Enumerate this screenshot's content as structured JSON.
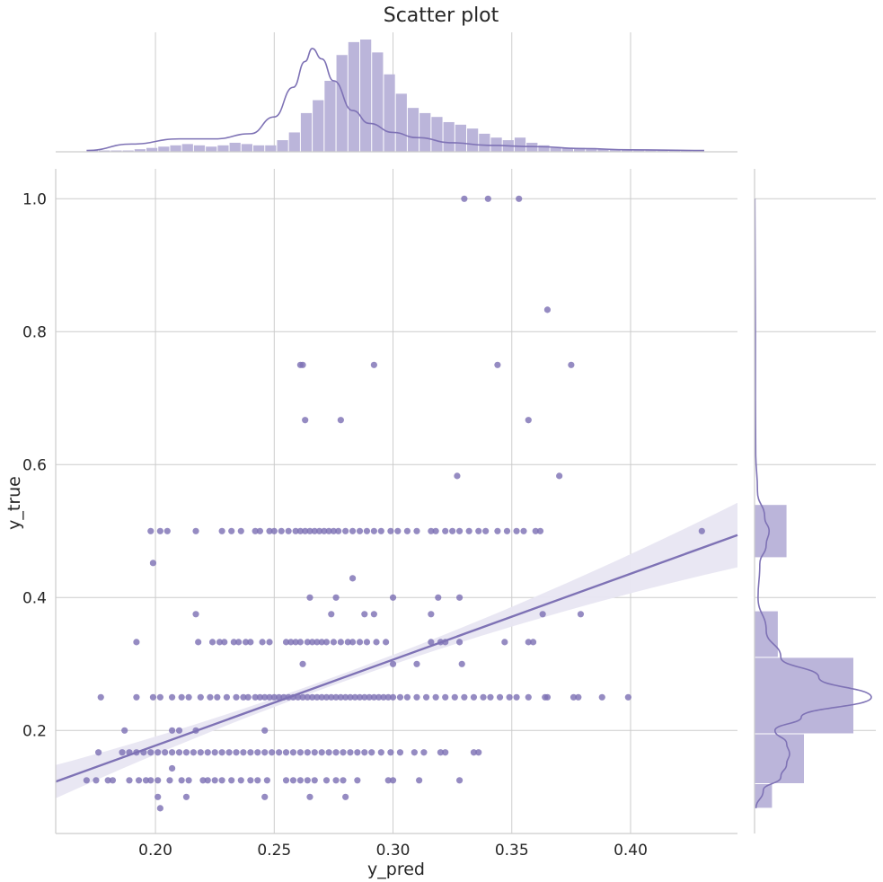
{
  "chart_data": {
    "type": "scatter",
    "title": "Scatter plot",
    "xlabel": "y_pred",
    "ylabel": "y_true",
    "xlim": [
      0.158,
      0.445
    ],
    "ylim": [
      0.045,
      1.045
    ],
    "x_ticks": [
      0.2,
      0.25,
      0.3,
      0.35,
      0.4
    ],
    "x_tick_labels": [
      "0.20",
      "0.25",
      "0.30",
      "0.35",
      "0.40"
    ],
    "y_ticks": [
      0.2,
      0.4,
      0.6,
      0.8,
      1.0
    ],
    "y_tick_labels": [
      "0.2",
      "0.4",
      "0.6",
      "0.8",
      "1.0"
    ],
    "grid": true,
    "colors": {
      "points": "#7e72b5",
      "line": "#7e72b5",
      "band": "#e8e6f2",
      "hist_bar": "#bbb5da",
      "kde": "#7e72b5"
    },
    "regression": {
      "x": [
        0.158,
        0.445
      ],
      "y": [
        0.123,
        0.494
      ],
      "ci_upper_at_ends": [
        0.148,
        0.543
      ],
      "ci_lower_at_ends": [
        0.098,
        0.446
      ],
      "ci_center_x": 0.27
    },
    "points": [
      [
        0.33,
        1.0
      ],
      [
        0.34,
        1.0
      ],
      [
        0.353,
        1.0
      ],
      [
        0.365,
        0.833
      ],
      [
        0.261,
        0.75
      ],
      [
        0.262,
        0.75
      ],
      [
        0.292,
        0.75
      ],
      [
        0.344,
        0.75
      ],
      [
        0.375,
        0.75
      ],
      [
        0.263,
        0.667
      ],
      [
        0.278,
        0.667
      ],
      [
        0.357,
        0.667
      ],
      [
        0.327,
        0.583
      ],
      [
        0.37,
        0.583
      ],
      [
        0.43,
        0.5
      ],
      [
        0.198,
        0.5
      ],
      [
        0.202,
        0.5
      ],
      [
        0.205,
        0.5
      ],
      [
        0.217,
        0.5
      ],
      [
        0.228,
        0.5
      ],
      [
        0.232,
        0.5
      ],
      [
        0.236,
        0.5
      ],
      [
        0.242,
        0.5
      ],
      [
        0.244,
        0.5
      ],
      [
        0.248,
        0.5
      ],
      [
        0.25,
        0.5
      ],
      [
        0.253,
        0.5
      ],
      [
        0.256,
        0.5
      ],
      [
        0.259,
        0.5
      ],
      [
        0.261,
        0.5
      ],
      [
        0.263,
        0.5
      ],
      [
        0.265,
        0.5
      ],
      [
        0.267,
        0.5
      ],
      [
        0.269,
        0.5
      ],
      [
        0.271,
        0.5
      ],
      [
        0.273,
        0.5
      ],
      [
        0.275,
        0.5
      ],
      [
        0.277,
        0.5
      ],
      [
        0.28,
        0.5
      ],
      [
        0.283,
        0.5
      ],
      [
        0.286,
        0.5
      ],
      [
        0.289,
        0.5
      ],
      [
        0.292,
        0.5
      ],
      [
        0.295,
        0.5
      ],
      [
        0.299,
        0.5
      ],
      [
        0.302,
        0.5
      ],
      [
        0.306,
        0.5
      ],
      [
        0.31,
        0.5
      ],
      [
        0.316,
        0.5
      ],
      [
        0.318,
        0.5
      ],
      [
        0.322,
        0.5
      ],
      [
        0.325,
        0.5
      ],
      [
        0.328,
        0.5
      ],
      [
        0.332,
        0.5
      ],
      [
        0.336,
        0.5
      ],
      [
        0.339,
        0.5
      ],
      [
        0.344,
        0.5
      ],
      [
        0.348,
        0.5
      ],
      [
        0.352,
        0.5
      ],
      [
        0.355,
        0.5
      ],
      [
        0.36,
        0.5
      ],
      [
        0.362,
        0.5
      ],
      [
        0.199,
        0.452
      ],
      [
        0.283,
        0.429
      ],
      [
        0.265,
        0.4
      ],
      [
        0.276,
        0.4
      ],
      [
        0.3,
        0.4
      ],
      [
        0.319,
        0.4
      ],
      [
        0.328,
        0.4
      ],
      [
        0.217,
        0.375
      ],
      [
        0.274,
        0.375
      ],
      [
        0.288,
        0.375
      ],
      [
        0.292,
        0.375
      ],
      [
        0.316,
        0.375
      ],
      [
        0.363,
        0.375
      ],
      [
        0.379,
        0.375
      ],
      [
        0.192,
        0.333
      ],
      [
        0.218,
        0.333
      ],
      [
        0.224,
        0.333
      ],
      [
        0.227,
        0.333
      ],
      [
        0.229,
        0.333
      ],
      [
        0.233,
        0.333
      ],
      [
        0.235,
        0.333
      ],
      [
        0.238,
        0.333
      ],
      [
        0.24,
        0.333
      ],
      [
        0.245,
        0.333
      ],
      [
        0.248,
        0.333
      ],
      [
        0.255,
        0.333
      ],
      [
        0.257,
        0.333
      ],
      [
        0.259,
        0.333
      ],
      [
        0.261,
        0.333
      ],
      [
        0.264,
        0.333
      ],
      [
        0.266,
        0.333
      ],
      [
        0.268,
        0.333
      ],
      [
        0.27,
        0.333
      ],
      [
        0.272,
        0.333
      ],
      [
        0.275,
        0.333
      ],
      [
        0.278,
        0.333
      ],
      [
        0.281,
        0.333
      ],
      [
        0.283,
        0.333
      ],
      [
        0.286,
        0.333
      ],
      [
        0.289,
        0.333
      ],
      [
        0.293,
        0.333
      ],
      [
        0.297,
        0.333
      ],
      [
        0.316,
        0.333
      ],
      [
        0.32,
        0.333
      ],
      [
        0.322,
        0.333
      ],
      [
        0.328,
        0.333
      ],
      [
        0.347,
        0.333
      ],
      [
        0.357,
        0.333
      ],
      [
        0.359,
        0.333
      ],
      [
        0.262,
        0.3
      ],
      [
        0.3,
        0.3
      ],
      [
        0.31,
        0.3
      ],
      [
        0.329,
        0.3
      ],
      [
        0.177,
        0.25
      ],
      [
        0.192,
        0.25
      ],
      [
        0.199,
        0.25
      ],
      [
        0.202,
        0.25
      ],
      [
        0.207,
        0.25
      ],
      [
        0.211,
        0.25
      ],
      [
        0.214,
        0.25
      ],
      [
        0.219,
        0.25
      ],
      [
        0.223,
        0.25
      ],
      [
        0.226,
        0.25
      ],
      [
        0.23,
        0.25
      ],
      [
        0.234,
        0.25
      ],
      [
        0.237,
        0.25
      ],
      [
        0.239,
        0.25
      ],
      [
        0.242,
        0.25
      ],
      [
        0.244,
        0.25
      ],
      [
        0.246,
        0.25
      ],
      [
        0.248,
        0.25
      ],
      [
        0.25,
        0.25
      ],
      [
        0.252,
        0.25
      ],
      [
        0.254,
        0.25
      ],
      [
        0.256,
        0.25
      ],
      [
        0.258,
        0.25
      ],
      [
        0.26,
        0.25
      ],
      [
        0.262,
        0.25
      ],
      [
        0.264,
        0.25
      ],
      [
        0.266,
        0.25
      ],
      [
        0.268,
        0.25
      ],
      [
        0.27,
        0.25
      ],
      [
        0.272,
        0.25
      ],
      [
        0.274,
        0.25
      ],
      [
        0.276,
        0.25
      ],
      [
        0.278,
        0.25
      ],
      [
        0.28,
        0.25
      ],
      [
        0.282,
        0.25
      ],
      [
        0.284,
        0.25
      ],
      [
        0.286,
        0.25
      ],
      [
        0.288,
        0.25
      ],
      [
        0.29,
        0.25
      ],
      [
        0.292,
        0.25
      ],
      [
        0.294,
        0.25
      ],
      [
        0.296,
        0.25
      ],
      [
        0.298,
        0.25
      ],
      [
        0.3,
        0.25
      ],
      [
        0.303,
        0.25
      ],
      [
        0.306,
        0.25
      ],
      [
        0.31,
        0.25
      ],
      [
        0.314,
        0.25
      ],
      [
        0.318,
        0.25
      ],
      [
        0.322,
        0.25
      ],
      [
        0.326,
        0.25
      ],
      [
        0.33,
        0.25
      ],
      [
        0.334,
        0.25
      ],
      [
        0.338,
        0.25
      ],
      [
        0.341,
        0.25
      ],
      [
        0.345,
        0.25
      ],
      [
        0.349,
        0.25
      ],
      [
        0.352,
        0.25
      ],
      [
        0.357,
        0.25
      ],
      [
        0.364,
        0.25
      ],
      [
        0.365,
        0.25
      ],
      [
        0.376,
        0.25
      ],
      [
        0.378,
        0.25
      ],
      [
        0.388,
        0.25
      ],
      [
        0.399,
        0.25
      ],
      [
        0.187,
        0.2
      ],
      [
        0.207,
        0.2
      ],
      [
        0.21,
        0.2
      ],
      [
        0.217,
        0.2
      ],
      [
        0.246,
        0.2
      ],
      [
        0.176,
        0.167
      ],
      [
        0.186,
        0.167
      ],
      [
        0.189,
        0.167
      ],
      [
        0.192,
        0.167
      ],
      [
        0.195,
        0.167
      ],
      [
        0.198,
        0.167
      ],
      [
        0.201,
        0.167
      ],
      [
        0.204,
        0.167
      ],
      [
        0.207,
        0.167
      ],
      [
        0.21,
        0.167
      ],
      [
        0.213,
        0.167
      ],
      [
        0.216,
        0.167
      ],
      [
        0.219,
        0.167
      ],
      [
        0.222,
        0.167
      ],
      [
        0.225,
        0.167
      ],
      [
        0.228,
        0.167
      ],
      [
        0.231,
        0.167
      ],
      [
        0.234,
        0.167
      ],
      [
        0.237,
        0.167
      ],
      [
        0.24,
        0.167
      ],
      [
        0.243,
        0.167
      ],
      [
        0.246,
        0.167
      ],
      [
        0.249,
        0.167
      ],
      [
        0.252,
        0.167
      ],
      [
        0.255,
        0.167
      ],
      [
        0.258,
        0.167
      ],
      [
        0.261,
        0.167
      ],
      [
        0.264,
        0.167
      ],
      [
        0.267,
        0.167
      ],
      [
        0.27,
        0.167
      ],
      [
        0.273,
        0.167
      ],
      [
        0.276,
        0.167
      ],
      [
        0.279,
        0.167
      ],
      [
        0.282,
        0.167
      ],
      [
        0.285,
        0.167
      ],
      [
        0.288,
        0.167
      ],
      [
        0.291,
        0.167
      ],
      [
        0.295,
        0.167
      ],
      [
        0.299,
        0.167
      ],
      [
        0.303,
        0.167
      ],
      [
        0.309,
        0.167
      ],
      [
        0.313,
        0.167
      ],
      [
        0.32,
        0.167
      ],
      [
        0.322,
        0.167
      ],
      [
        0.334,
        0.167
      ],
      [
        0.336,
        0.167
      ],
      [
        0.207,
        0.143
      ],
      [
        0.171,
        0.125
      ],
      [
        0.175,
        0.125
      ],
      [
        0.18,
        0.125
      ],
      [
        0.182,
        0.125
      ],
      [
        0.189,
        0.125
      ],
      [
        0.193,
        0.125
      ],
      [
        0.196,
        0.125
      ],
      [
        0.198,
        0.125
      ],
      [
        0.201,
        0.125
      ],
      [
        0.206,
        0.125
      ],
      [
        0.211,
        0.125
      ],
      [
        0.214,
        0.125
      ],
      [
        0.22,
        0.125
      ],
      [
        0.222,
        0.125
      ],
      [
        0.225,
        0.125
      ],
      [
        0.228,
        0.125
      ],
      [
        0.232,
        0.125
      ],
      [
        0.236,
        0.125
      ],
      [
        0.24,
        0.125
      ],
      [
        0.243,
        0.125
      ],
      [
        0.247,
        0.125
      ],
      [
        0.255,
        0.125
      ],
      [
        0.258,
        0.125
      ],
      [
        0.261,
        0.125
      ],
      [
        0.264,
        0.125
      ],
      [
        0.267,
        0.125
      ],
      [
        0.272,
        0.125
      ],
      [
        0.276,
        0.125
      ],
      [
        0.279,
        0.125
      ],
      [
        0.285,
        0.125
      ],
      [
        0.298,
        0.125
      ],
      [
        0.3,
        0.125
      ],
      [
        0.311,
        0.125
      ],
      [
        0.328,
        0.125
      ],
      [
        0.201,
        0.1
      ],
      [
        0.213,
        0.1
      ],
      [
        0.246,
        0.1
      ],
      [
        0.265,
        0.1
      ],
      [
        0.28,
        0.1
      ],
      [
        0.202,
        0.083
      ]
    ],
    "marginal_x": {
      "type": "histogram",
      "bin_start": 0.171,
      "bin_width": 0.005,
      "counts": [
        1,
        1,
        1,
        1,
        2,
        3,
        4,
        5,
        6,
        5,
        4,
        5,
        7,
        6,
        5,
        5,
        9,
        15,
        30,
        40,
        55,
        75,
        85,
        87,
        77,
        60,
        45,
        34,
        30,
        27,
        23,
        21,
        18,
        14,
        11,
        9,
        11,
        7,
        5,
        3,
        3,
        3,
        2,
        2,
        2,
        2,
        1,
        1,
        1,
        1,
        1,
        1
      ],
      "kde_x": [
        0.171,
        0.19,
        0.21,
        0.225,
        0.24,
        0.25,
        0.258,
        0.263,
        0.266,
        0.27,
        0.275,
        0.283,
        0.29,
        0.3,
        0.31,
        0.325,
        0.34,
        0.36,
        0.38,
        0.4,
        0.431
      ],
      "kde_y": [
        1,
        6,
        10,
        10,
        14,
        27,
        50,
        70,
        80,
        72,
        55,
        32,
        22,
        15,
        11,
        7,
        5,
        4,
        2.5,
        1.5,
        1
      ]
    },
    "marginal_y": {
      "type": "histogram",
      "bin_edges": [
        0.083,
        0.12,
        0.195,
        0.31,
        0.38,
        0.46,
        0.54,
        0.62,
        0.7,
        0.78,
        0.86,
        0.94,
        1.0
      ],
      "counts": [
        60,
        170,
        340,
        80,
        0,
        110,
        0,
        2,
        2,
        3,
        2,
        1
      ],
      "kde_y": [
        0.083,
        0.11,
        0.13,
        0.15,
        0.165,
        0.18,
        0.2,
        0.22,
        0.25,
        0.28,
        0.31,
        0.35,
        0.4,
        0.45,
        0.48,
        0.5,
        0.52,
        0.56,
        0.62,
        0.7,
        0.8,
        0.9,
        1.0
      ],
      "kde_w": [
        5,
        30,
        90,
        110,
        120,
        110,
        70,
        160,
        400,
        220,
        90,
        40,
        12,
        18,
        40,
        50,
        35,
        10,
        4,
        3,
        3,
        2,
        1
      ]
    }
  }
}
